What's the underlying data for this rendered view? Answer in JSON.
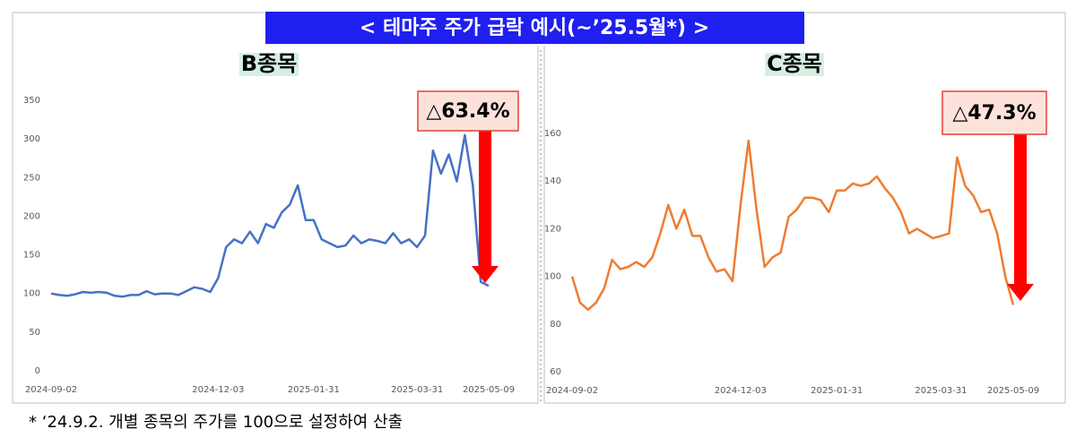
{
  "title": "< 테마주 주가 급락 예시(~’25.5월*) >",
  "footnote": "* ‘24.9.2. 개별 종목의 주가를 100으로 설정하여 산출",
  "chart_data": [
    {
      "type": "line",
      "title": "B종목",
      "annotation": "△63.4%",
      "color": "#4472c4",
      "categories": [
        "2024-09-02",
        null,
        null,
        null,
        null,
        null,
        null,
        null,
        null,
        null,
        null,
        null,
        null,
        null,
        null,
        null,
        null,
        null,
        null,
        null,
        null,
        "2024-12-03",
        null,
        null,
        null,
        null,
        null,
        null,
        null,
        null,
        null,
        null,
        null,
        "2025-01-31",
        null,
        null,
        null,
        null,
        null,
        null,
        null,
        null,
        null,
        null,
        null,
        null,
        "2025-03-31",
        null,
        null,
        null,
        null,
        null,
        null,
        null,
        null,
        "2025-05-09"
      ],
      "values": [
        100,
        98,
        97,
        99,
        102,
        101,
        102,
        101,
        97,
        96,
        98,
        98,
        103,
        99,
        100,
        100,
        98,
        103,
        108,
        106,
        102,
        120,
        160,
        170,
        165,
        180,
        165,
        190,
        185,
        205,
        215,
        240,
        195,
        195,
        170,
        165,
        160,
        162,
        175,
        165,
        170,
        168,
        165,
        178,
        165,
        170,
        160,
        175,
        285,
        255,
        280,
        245,
        305,
        240,
        115,
        110
      ],
      "ylim": [
        0,
        350
      ],
      "yticks": [
        0,
        50,
        100,
        150,
        200,
        250,
        300,
        350
      ]
    },
    {
      "type": "line",
      "title": "C종목",
      "annotation": "△47.3%",
      "color": "#ed7d31",
      "categories": [
        "2024-09-02",
        null,
        null,
        null,
        null,
        null,
        null,
        null,
        null,
        null,
        null,
        null,
        null,
        null,
        null,
        null,
        null,
        null,
        null,
        null,
        null,
        "2024-12-03",
        null,
        null,
        null,
        null,
        null,
        null,
        null,
        null,
        null,
        null,
        null,
        "2025-01-31",
        null,
        null,
        null,
        null,
        null,
        null,
        null,
        null,
        null,
        null,
        null,
        null,
        "2025-03-31",
        null,
        null,
        null,
        null,
        null,
        null,
        null,
        null,
        "2025-05-09"
      ],
      "values": [
        100,
        89,
        86,
        89,
        95,
        107,
        103,
        104,
        106,
        104,
        108,
        118,
        130,
        120,
        128,
        117,
        117,
        108,
        102,
        103,
        98,
        130,
        157,
        128,
        104,
        108,
        110,
        125,
        128,
        133,
        133,
        132,
        127,
        136,
        136,
        139,
        138,
        139,
        142,
        137,
        133,
        127,
        118,
        120,
        118,
        116,
        117,
        118,
        150,
        138,
        134,
        127,
        128,
        118,
        100,
        88
      ],
      "ylim": [
        60,
        160
      ],
      "yticks": [
        60,
        80,
        100,
        120,
        140,
        160
      ]
    }
  ]
}
